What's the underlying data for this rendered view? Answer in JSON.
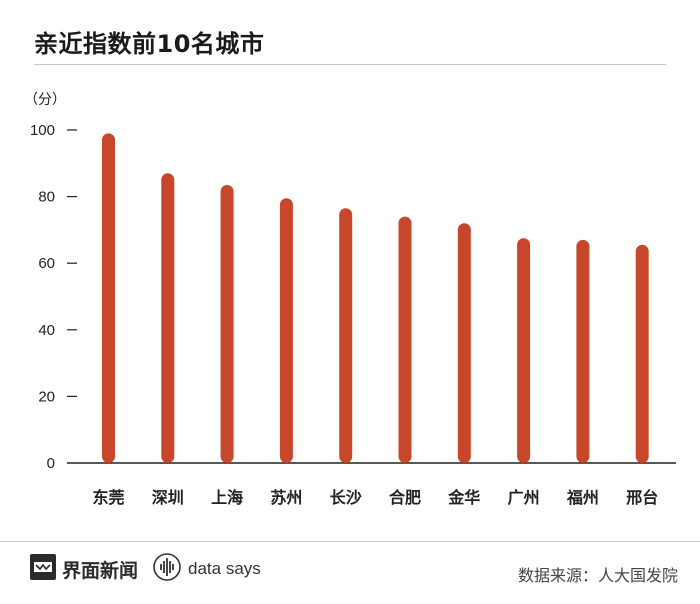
{
  "title": "亲近指数前10名城市",
  "brand": {
    "name": "界面新闻",
    "tagline": "data says"
  },
  "source": "数据来源：人大国发院",
  "colors": {
    "bar": "#c8472a",
    "axis": "#222222",
    "text": "#222222"
  },
  "chart_data": {
    "type": "bar",
    "title": "亲近指数前10名城市",
    "ylabel": "（分）",
    "xlabel": "",
    "categories": [
      "东莞",
      "深圳",
      "上海",
      "苏州",
      "长沙",
      "合肥",
      "金华",
      "广州",
      "福州",
      "邢台"
    ],
    "values": [
      99,
      87,
      83.5,
      79.5,
      76.5,
      74,
      72,
      67.5,
      67,
      65.5
    ],
    "ylim": [
      0,
      100
    ],
    "yticks": [
      0,
      20,
      40,
      60,
      80,
      100
    ],
    "grid": false,
    "legend": "none"
  }
}
